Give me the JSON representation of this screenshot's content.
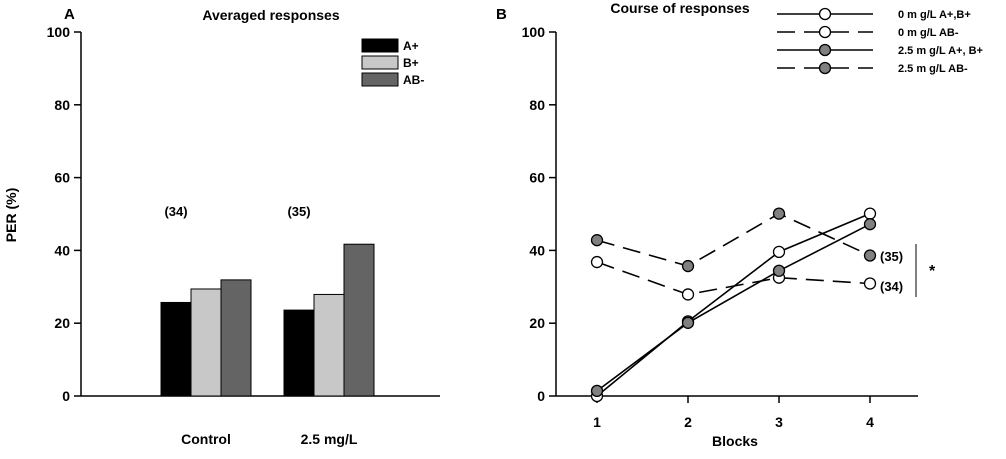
{
  "chart_data": [
    {
      "panel": "A",
      "type": "bar",
      "title": "Averaged responses",
      "ylabel": "PER (%)",
      "xlabel": "",
      "ylim": [
        0,
        100
      ],
      "yticks": [
        0,
        20,
        40,
        60,
        80,
        100
      ],
      "categories": [
        "Control",
        "2.5 mg/L"
      ],
      "group_annotations": [
        "(34)",
        "(35)"
      ],
      "series": [
        {
          "name": "A+",
          "values": [
            25.7,
            23.6
          ],
          "color": "#000000"
        },
        {
          "name": "B+",
          "values": [
            29.4,
            27.9
          ],
          "color": "#c8c8c8"
        },
        {
          "name": "AB-",
          "values": [
            31.9,
            41.7
          ],
          "color": "#646464"
        }
      ],
      "legend_position": "top-right"
    },
    {
      "panel": "B",
      "type": "line",
      "title": "Course of responses",
      "xlabel": "Blocks",
      "ylabel": "",
      "ylim": [
        0,
        100
      ],
      "yticks": [
        0,
        20,
        40,
        60,
        80,
        100
      ],
      "x": [
        1,
        2,
        3,
        4
      ],
      "series": [
        {
          "name": "0 m g/L A+,B+",
          "values": [
            0,
            20.5,
            39.6,
            50.1
          ],
          "marker": "open",
          "dash": "solid"
        },
        {
          "name": "0 m g/L AB-",
          "values": [
            36.8,
            27.9,
            32.5,
            30.9
          ],
          "marker": "open",
          "dash": "dashed"
        },
        {
          "name": "2.5 m g/L A+, B+",
          "values": [
            1.4,
            20.1,
            34.4,
            47.2
          ],
          "marker": "filled",
          "dash": "solid"
        },
        {
          "name": "2.5 m g/L AB-",
          "values": [
            42.8,
            35.7,
            50.1,
            38.6
          ],
          "marker": "filled",
          "dash": "dashed"
        }
      ],
      "end_annotations": [
        "(35)",
        "(34)"
      ],
      "significance": "*",
      "legend_position": "top-right"
    }
  ],
  "colors": {
    "open_marker_fill": "#ffffff",
    "filled_marker_fill": "#808080"
  }
}
